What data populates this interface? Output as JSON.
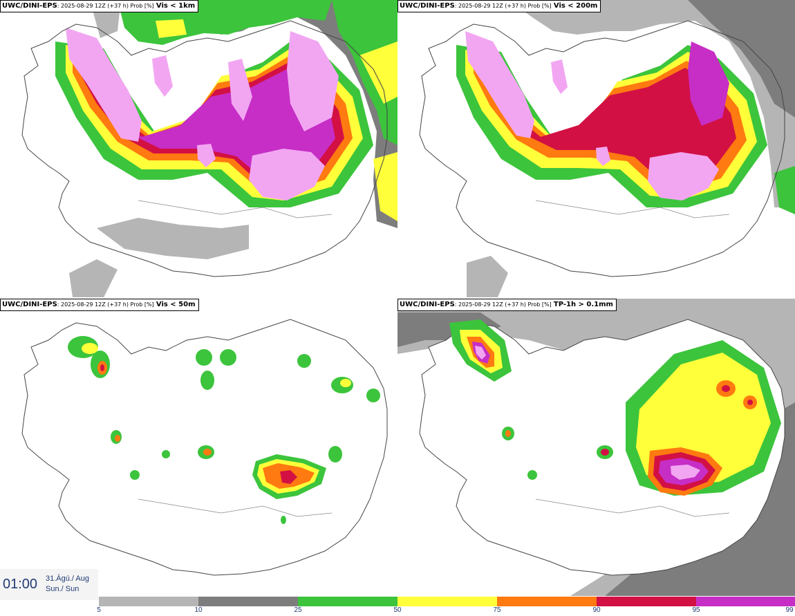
{
  "panels": [
    {
      "model": "UWC/DINI-EPS",
      "meta": ": 2025-08-29 12Z (+37 h) Prob [%]",
      "variable": "Vis < 1km"
    },
    {
      "model": "UWC/DINI-EPS",
      "meta": ": 2025-08-29 12Z (+37 h) Prob [%]",
      "variable": "Vis < 200m"
    },
    {
      "model": "UWC/DINI-EPS",
      "meta": ": 2025-08-29 12Z (+37 h) Prob [%]",
      "variable": "Vis < 50m"
    },
    {
      "model": "UWC/DINI-EPS",
      "meta": ": 2025-08-29 12Z (+37 h) Prob [%]",
      "variable": "TP-1h > 0.1mm"
    }
  ],
  "valid_time": {
    "time": "01:00",
    "date": "31.Ágú./ Aug",
    "day": "Sun./ Sun"
  },
  "legend": {
    "ticks": [
      "5",
      "10",
      "25",
      "50",
      "75",
      "90",
      "95",
      "99"
    ],
    "colors": [
      "#b5b5b5",
      "#7d7d7d",
      "#3cc43c",
      "#ffff3a",
      "#ff7a10",
      "#d21044",
      "#c62ec6",
      "#f2a6f2"
    ]
  },
  "colors": {
    "outline": "#444444",
    "pink": "#f2a6f2",
    "magenta": "#c62ec6",
    "crimson": "#d21044",
    "orange": "#ff7a10",
    "yellow": "#ffff3a",
    "green": "#3cc43c",
    "darkgray": "#7d7d7d",
    "lightgray": "#b5b5b5"
  }
}
